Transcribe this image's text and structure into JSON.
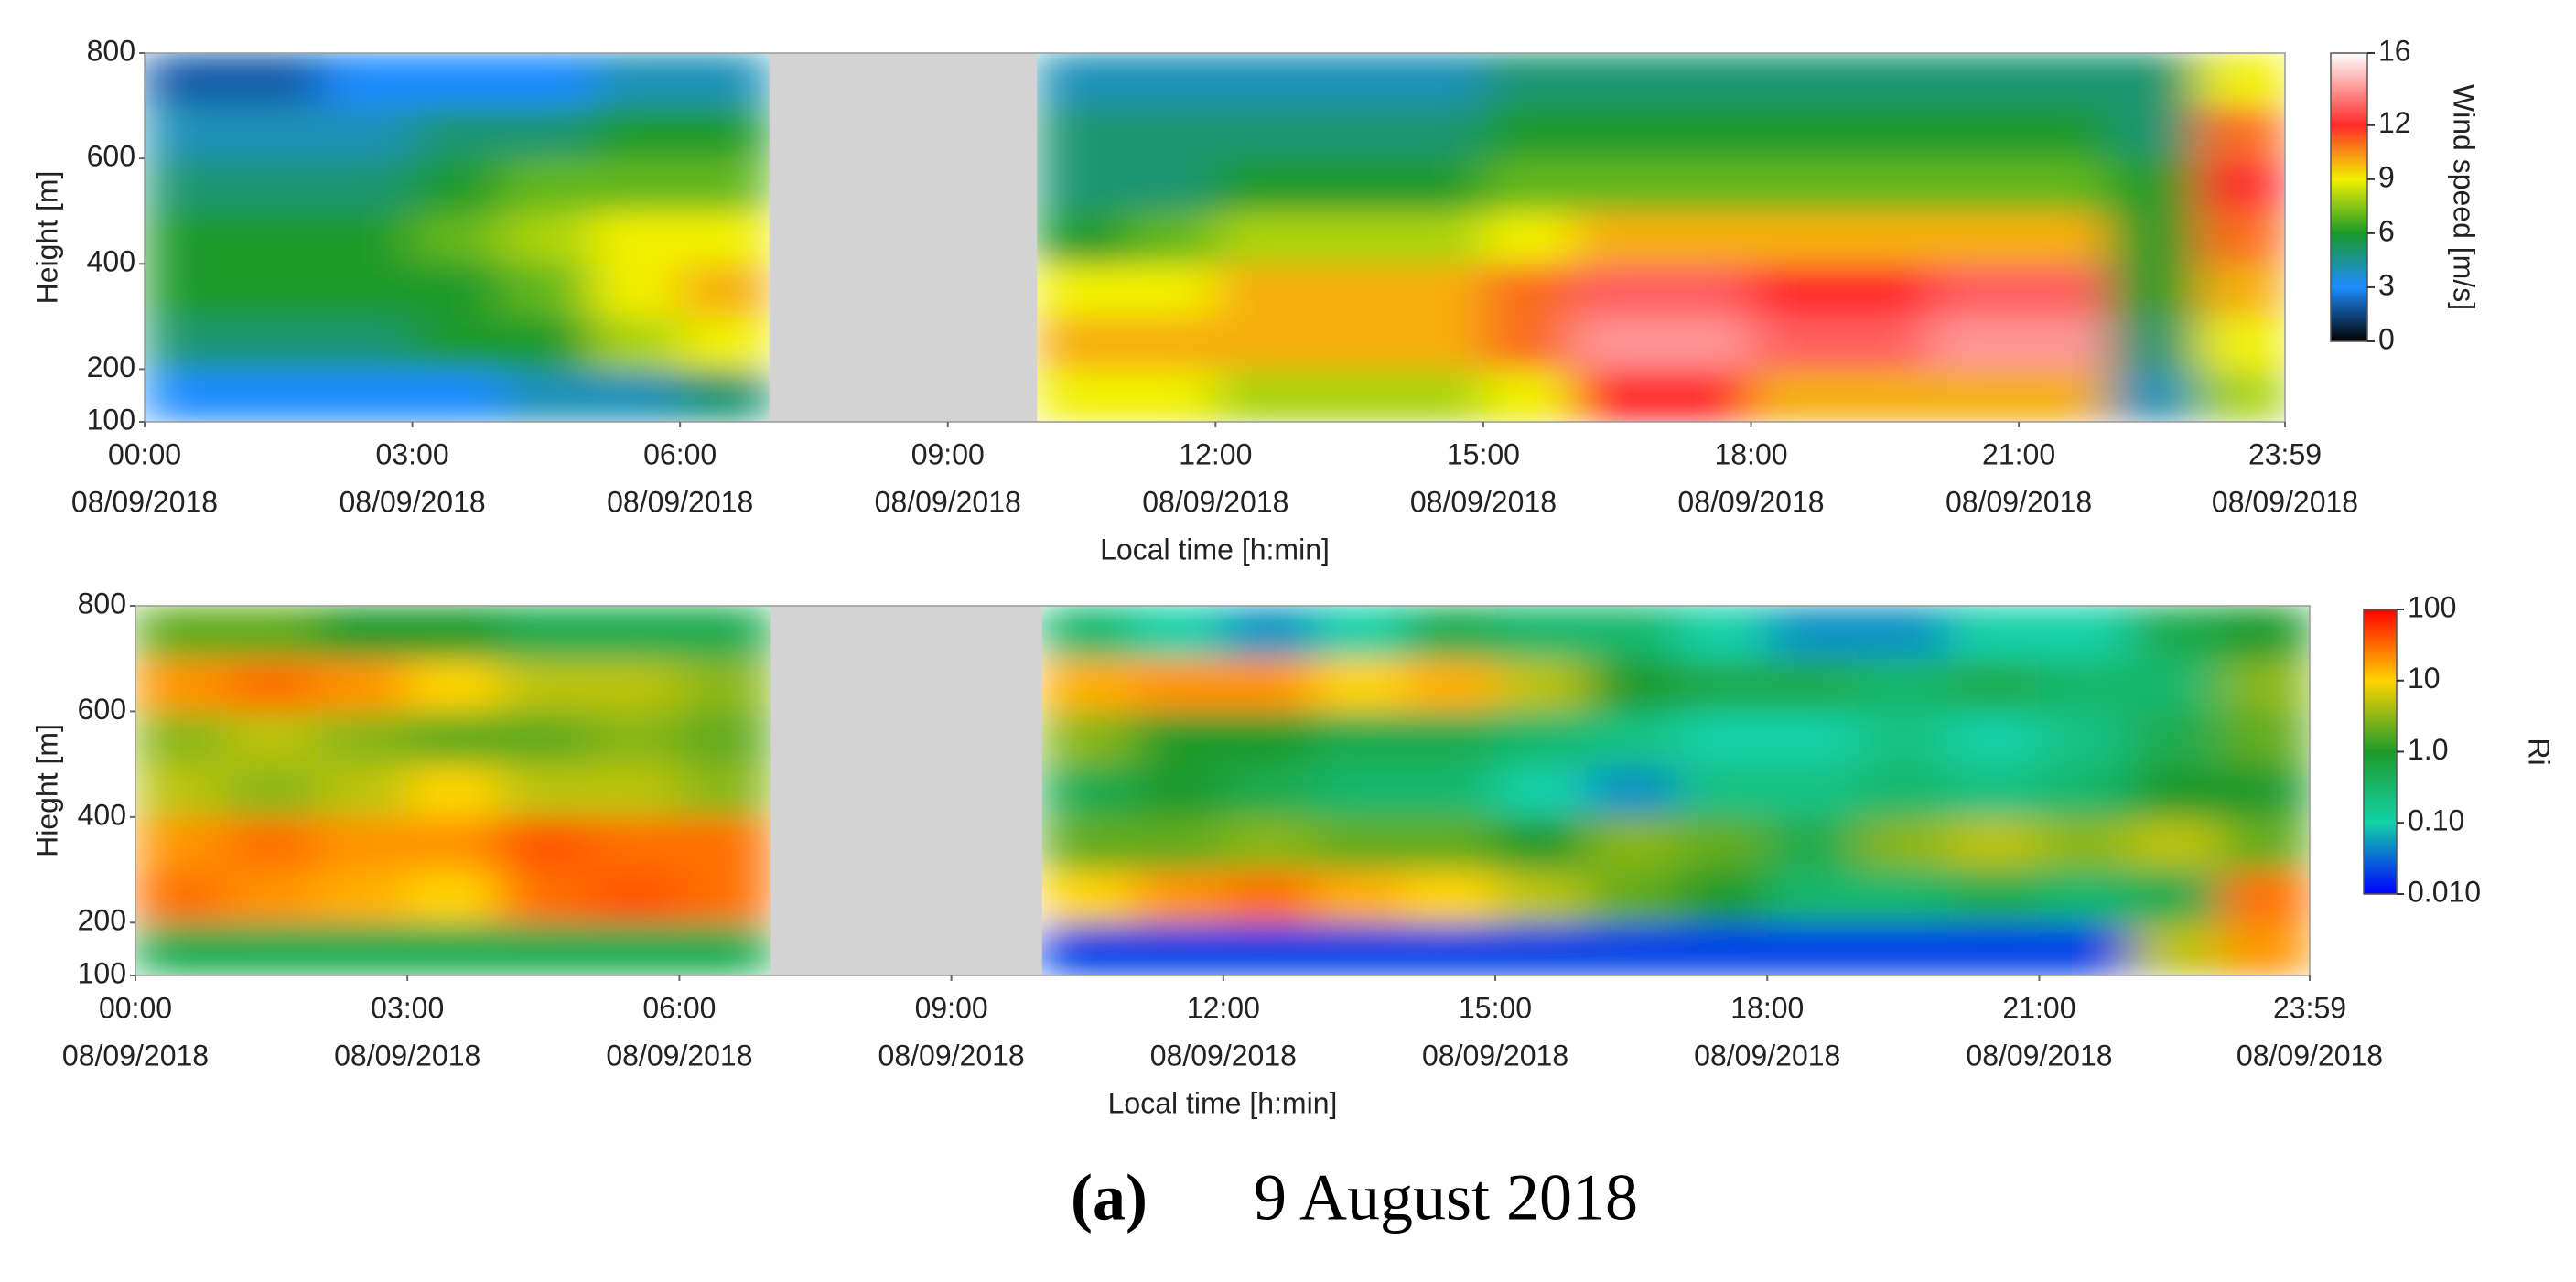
{
  "chart_data": [
    {
      "type": "heatmap",
      "y_label": "Height  [m]",
      "x_label": "Local time [h:min]",
      "xlim": [
        0,
        23.983
      ],
      "xticks": [
        {
          "value": 0,
          "label": "00:00"
        },
        {
          "value": 3,
          "label": "03:00"
        },
        {
          "value": 6,
          "label": "06:00"
        },
        {
          "value": 9,
          "label": "09:00"
        },
        {
          "value": 12,
          "label": "12:00"
        },
        {
          "value": 15,
          "label": "15:00"
        },
        {
          "value": 18,
          "label": "18:00"
        },
        {
          "value": 21,
          "label": "21:00"
        },
        {
          "value": 23.983,
          "label": "23:59"
        }
      ],
      "xtick_date": "08/09/2018",
      "ylim": [
        100,
        800
      ],
      "yticks": [
        100,
        200,
        400,
        600,
        800
      ],
      "x_edges": [
        0,
        1,
        2,
        3,
        4,
        5,
        6,
        7,
        8,
        9,
        10,
        11,
        12,
        13,
        14,
        15,
        16,
        17,
        18,
        19,
        20,
        21,
        22,
        23,
        23.983
      ],
      "y_edges": [
        100,
        200,
        300,
        400,
        500,
        600,
        700,
        800
      ],
      "z": [
        [
          3,
          3,
          3,
          3,
          4,
          4,
          5,
          null,
          null,
          null,
          9,
          9,
          8,
          8,
          8,
          9,
          12,
          12,
          10,
          10,
          10,
          10,
          4,
          8
        ],
        [
          5,
          5,
          5,
          6,
          6,
          8,
          9,
          null,
          null,
          null,
          10,
          10,
          10,
          10,
          10,
          11,
          14,
          14,
          13,
          13,
          14,
          14,
          5,
          9
        ],
        [
          6,
          6,
          6,
          6,
          7,
          9,
          10,
          null,
          null,
          null,
          9,
          9,
          10,
          10,
          10,
          11,
          13,
          13,
          12,
          12,
          13,
          13,
          6,
          10
        ],
        [
          6,
          6,
          6,
          7,
          8,
          9,
          9,
          null,
          null,
          null,
          6,
          7,
          8,
          8,
          8,
          9,
          10,
          10,
          10,
          10,
          10,
          10,
          6,
          11
        ],
        [
          5,
          5,
          5,
          6,
          7,
          7,
          7,
          null,
          null,
          null,
          5,
          5,
          6,
          6,
          6,
          7,
          7,
          7,
          7,
          7,
          7,
          7,
          6,
          12
        ],
        [
          4,
          4,
          4,
          5,
          5,
          6,
          6,
          null,
          null,
          null,
          5,
          5,
          5,
          5,
          5,
          6,
          6,
          6,
          6,
          6,
          6,
          6,
          5,
          11
        ],
        [
          2,
          2,
          3,
          3,
          3,
          4,
          4,
          null,
          null,
          null,
          4,
          4,
          4,
          4,
          4,
          5,
          5,
          5,
          5,
          5,
          5,
          5,
          5,
          9
        ]
      ],
      "missing_color": "#d3d3d3",
      "colorbar": {
        "label": "Wind speed [m/s]",
        "scale": "linear",
        "clim": [
          0,
          16
        ],
        "ticks": [
          0,
          3,
          6,
          9,
          12,
          16
        ],
        "colors": [
          "#000000",
          "#1e8cff",
          "#1a9a2a",
          "#f2f000",
          "#ff2a2a",
          "#ffffff"
        ]
      }
    },
    {
      "type": "heatmap",
      "y_label": "Hieght  [m]",
      "x_label": "Local time [h:min]",
      "xlim": [
        0,
        23.983
      ],
      "xticks": [
        {
          "value": 0,
          "label": "00:00"
        },
        {
          "value": 3,
          "label": "03:00"
        },
        {
          "value": 6,
          "label": "06:00"
        },
        {
          "value": 9,
          "label": "09:00"
        },
        {
          "value": 12,
          "label": "12:00"
        },
        {
          "value": 15,
          "label": "15:00"
        },
        {
          "value": 18,
          "label": "18:00"
        },
        {
          "value": 21,
          "label": "21:00"
        },
        {
          "value": 23.983,
          "label": "23:59"
        }
      ],
      "xtick_date": "08/09/2018",
      "ylim": [
        100,
        800
      ],
      "yticks": [
        100,
        200,
        400,
        600,
        800
      ],
      "x_edges": [
        0,
        1,
        2,
        3,
        4,
        5,
        6,
        7,
        8,
        9,
        10,
        11,
        12,
        13,
        14,
        15,
        16,
        17,
        18,
        19,
        20,
        21,
        22,
        23,
        23.983
      ],
      "y_edges": [
        100,
        200,
        300,
        400,
        500,
        600,
        700,
        800
      ],
      "z": [
        [
          0.5,
          0.5,
          0.5,
          0.5,
          0.5,
          0.5,
          0.5,
          null,
          null,
          null,
          0.02,
          0.02,
          0.02,
          0.02,
          0.02,
          0.02,
          0.02,
          0.02,
          0.02,
          0.02,
          0.02,
          0.02,
          5,
          20
        ],
        [
          30,
          20,
          15,
          10,
          30,
          40,
          30,
          null,
          null,
          null,
          10,
          20,
          30,
          15,
          10,
          5,
          2,
          1,
          0.3,
          0.3,
          0.5,
          0.3,
          0.5,
          30
        ],
        [
          20,
          30,
          20,
          20,
          40,
          30,
          30,
          null,
          null,
          null,
          2,
          2,
          3,
          2,
          2,
          1,
          3,
          2,
          0.5,
          3,
          5,
          3,
          5,
          2
        ],
        [
          5,
          3,
          5,
          10,
          5,
          5,
          3,
          null,
          null,
          null,
          0.5,
          1,
          0.5,
          0.3,
          0.3,
          0.1,
          0.05,
          0.2,
          0.2,
          0.3,
          0.2,
          0.3,
          1,
          1
        ],
        [
          3,
          5,
          3,
          2,
          2,
          3,
          2,
          null,
          null,
          null,
          3,
          1,
          1,
          0.5,
          0.5,
          0.3,
          0.2,
          0.1,
          0.1,
          0.2,
          0.1,
          0.2,
          0.5,
          2
        ],
        [
          20,
          30,
          20,
          10,
          5,
          5,
          3,
          null,
          null,
          null,
          15,
          20,
          20,
          10,
          15,
          5,
          1,
          0.5,
          0.5,
          0.3,
          0.5,
          0.3,
          0.3,
          3
        ],
        [
          2,
          2,
          1,
          1,
          0.5,
          0.5,
          0.5,
          null,
          null,
          null,
          0.3,
          0.1,
          0.05,
          0.1,
          0.5,
          0.3,
          0.3,
          0.1,
          0.05,
          0.05,
          0.1,
          0.1,
          0.5,
          1
        ]
      ],
      "missing_color": "#d3d3d3",
      "colorbar": {
        "label": "Ri",
        "scale": "log",
        "clim": [
          0.01,
          100
        ],
        "ticks": [
          {
            "value": 0.01,
            "label": "0.010"
          },
          {
            "value": 0.1,
            "label": "0.10"
          },
          {
            "value": 1,
            "label": "1.0"
          },
          10,
          100
        ],
        "colors": [
          "#0000ff",
          "#12d2a8",
          "#1e9a2a",
          "#ffd400",
          "#ff0000"
        ]
      }
    }
  ],
  "caption": {
    "label": "(a)",
    "text": "9 August 2018"
  }
}
